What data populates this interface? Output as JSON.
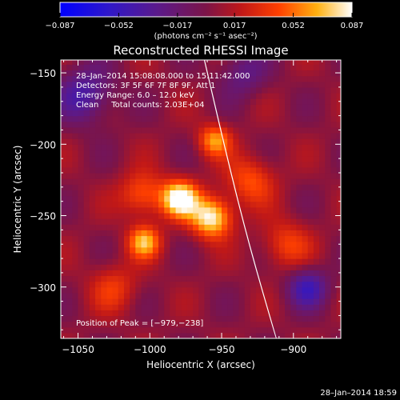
{
  "chart_data": {
    "type": "heatmap",
    "title": "Reconstructed RHESSI Image",
    "xlabel": "Heliocentric X (arcsec)",
    "ylabel": "Heliocentric Y (arcsec)",
    "xlim": [
      -1062,
      -867
    ],
    "ylim": [
      -336,
      -141
    ],
    "x_ticks": [
      -1050,
      -1000,
      -950,
      -900
    ],
    "x_tick_labels": [
      "−1050",
      "−1000",
      "−950",
      "−900"
    ],
    "y_ticks": [
      -150,
      -200,
      -250,
      -300
    ],
    "y_tick_labels": [
      "−150",
      "−200",
      "−250",
      "−300"
    ],
    "colorbar": {
      "min": -0.087,
      "max": 0.087,
      "ticks": [
        -0.087,
        -0.052,
        -0.017,
        0.017,
        0.052,
        0.087
      ],
      "tick_labels": [
        "−0.087",
        "−0.052",
        "−0.017",
        "0.017",
        "0.052",
        "0.087"
      ],
      "unit_label": "(photons cm⁻² s⁻¹ asec⁻²)"
    },
    "annotations": [
      "28–Jan–2014 15:08:08.000 to 15:11:42.000",
      "Detectors: 3F 5F 6F 7F 8F 9F, Att 1",
      "Energy Range: 6.0 – 12.0 keV",
      "Clean     Total counts: 2.03E+04"
    ],
    "peak_label": "Position of Peak = [−979,−238]",
    "peak_position": [
      -979,
      -238
    ],
    "sources": [
      {
        "x": -979,
        "y": -238,
        "peak": 0.087,
        "sigma": 9
      },
      {
        "x": -957,
        "y": -251,
        "peak": 0.082,
        "sigma": 10
      },
      {
        "x": -955,
        "y": -197,
        "peak": 0.055,
        "sigma": 8
      },
      {
        "x": -1004,
        "y": -268,
        "peak": 0.062,
        "sigma": 8
      },
      {
        "x": -1005,
        "y": -235,
        "peak": 0.045,
        "sigma": 11
      },
      {
        "x": -930,
        "y": -225,
        "peak": 0.04,
        "sigma": 12
      },
      {
        "x": -905,
        "y": -270,
        "peak": 0.035,
        "sigma": 12
      },
      {
        "x": -1025,
        "y": -300,
        "peak": 0.03,
        "sigma": 12
      },
      {
        "x": -1045,
        "y": -165,
        "peak": -0.045,
        "sigma": 14
      },
      {
        "x": -890,
        "y": -300,
        "peak": -0.05,
        "sigma": 10
      },
      {
        "x": -935,
        "y": -150,
        "peak": -0.03,
        "sigma": 12
      }
    ],
    "limb_curve": [
      [
        -962,
        -141
      ],
      [
        -946,
        -210
      ],
      [
        -931,
        -270
      ],
      [
        -912,
        -336
      ]
    ],
    "grid": false
  },
  "timestamp": "28–Jan–2014 18:59"
}
